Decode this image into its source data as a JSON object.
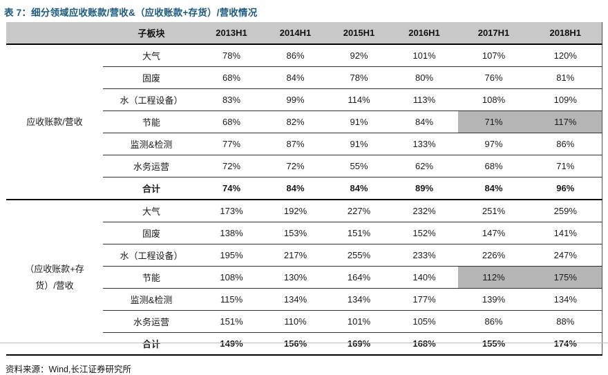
{
  "title": "表 7：细分领域应收账款/营收&（应收账款+存货）/营收情况",
  "source": "资料来源：Wind,长江证券研究所",
  "colors": {
    "title_text": "#1b5a7e",
    "header_bg": "#c8c8c8",
    "highlight_bg": "#b5b5b5",
    "rule_thin": "#2e2e2e",
    "rule_thick": "#000000"
  },
  "table": {
    "header": [
      "子板块",
      "2013H1",
      "2014H1",
      "2015H1",
      "2016H1",
      "2017H1",
      "2018H1"
    ],
    "groups": [
      {
        "label": "应收账款/营收",
        "rows": [
          {
            "name": "大气",
            "values": [
              "78%",
              "86%",
              "92%",
              "101%",
              "107%",
              "120%"
            ]
          },
          {
            "name": "固废",
            "values": [
              "68%",
              "84%",
              "78%",
              "80%",
              "76%",
              "81%"
            ]
          },
          {
            "name": "水（工程设备）",
            "values": [
              "83%",
              "99%",
              "114%",
              "113%",
              "108%",
              "109%"
            ]
          },
          {
            "name": "节能",
            "values": [
              "68%",
              "82%",
              "91%",
              "84%",
              "71%",
              "117%"
            ],
            "highlight": [
              4,
              5
            ]
          },
          {
            "name": "监测&检测",
            "values": [
              "77%",
              "87%",
              "91%",
              "133%",
              "97%",
              "86%"
            ]
          },
          {
            "name": "水务运营",
            "values": [
              "72%",
              "72%",
              "55%",
              "62%",
              "68%",
              "71%"
            ]
          },
          {
            "name": "合计",
            "values": [
              "74%",
              "84%",
              "84%",
              "89%",
              "84%",
              "96%"
            ],
            "bold": true
          }
        ]
      },
      {
        "label": "（应收账款+存货）/营收",
        "rows": [
          {
            "name": "大气",
            "values": [
              "173%",
              "192%",
              "227%",
              "232%",
              "251%",
              "259%"
            ]
          },
          {
            "name": "固废",
            "values": [
              "138%",
              "153%",
              "151%",
              "152%",
              "147%",
              "141%"
            ]
          },
          {
            "name": "水（工程设备）",
            "values": [
              "195%",
              "217%",
              "255%",
              "233%",
              "226%",
              "247%"
            ]
          },
          {
            "name": "节能",
            "values": [
              "108%",
              "130%",
              "164%",
              "140%",
              "112%",
              "175%"
            ],
            "highlight": [
              4,
              5
            ]
          },
          {
            "name": "监测&检测",
            "values": [
              "115%",
              "134%",
              "134%",
              "177%",
              "139%",
              "134%"
            ]
          },
          {
            "name": "水务运营",
            "values": [
              "151%",
              "110%",
              "101%",
              "105%",
              "86%",
              "88%"
            ]
          },
          {
            "name": "合计",
            "values": [
              "149%",
              "156%",
              "169%",
              "168%",
              "155%",
              "174%"
            ],
            "bold": true
          }
        ]
      }
    ]
  }
}
